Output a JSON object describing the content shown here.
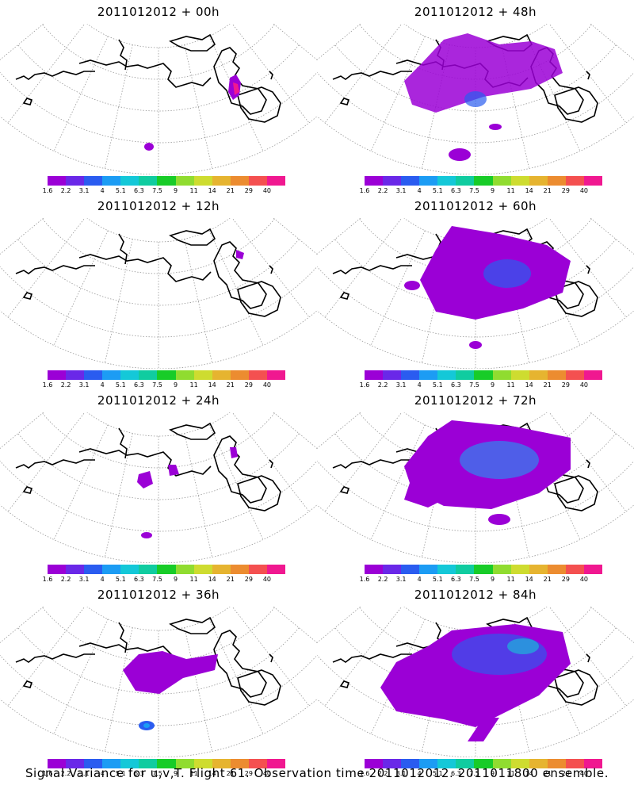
{
  "panels": [
    {
      "title": "2011012012 + 00h"
    },
    {
      "title": "2011012012 + 48h"
    },
    {
      "title": "2011012012 + 12h"
    },
    {
      "title": "2011012012 + 60h"
    },
    {
      "title": "2011012012 + 24h"
    },
    {
      "title": "2011012012 + 72h"
    },
    {
      "title": "2011012012 + 36h"
    },
    {
      "title": "2011012012 + 84h"
    }
  ],
  "colorbar": {
    "labels": [
      "1.6",
      "2.2",
      "3.1",
      "4",
      "5.1",
      "6.3",
      "7.5",
      "9",
      "11",
      "14",
      "21",
      "29",
      "40"
    ],
    "colors": [
      "#9b00d6",
      "#6a28e8",
      "#2a5cf0",
      "#1c9cf4",
      "#14c8d8",
      "#10cca0",
      "#18cc28",
      "#90dc30",
      "#cedc30",
      "#e6b430",
      "#ec8c30",
      "#f45050",
      "#f01890"
    ]
  },
  "caption": "Signal Variance for u,v,T. Flight 61. Observation time 2011012012. 2011011800 ensemble."
}
